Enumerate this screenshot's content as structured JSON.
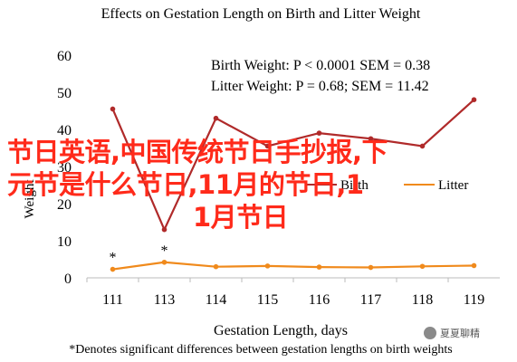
{
  "chart_data": {
    "type": "line",
    "title": "Effects on Gestation Length on Birth and Litter Weight",
    "xlabel": "Gestation Length, days",
    "ylabel": "Weight",
    "categories": [
      "111",
      "113",
      "114",
      "115",
      "116",
      "117",
      "118",
      "119"
    ],
    "ylim": [
      0,
      60
    ],
    "yticks": [
      "0",
      "10",
      "20",
      "30",
      "40",
      "50",
      "60"
    ],
    "grid": false,
    "series": [
      {
        "name": "Birth",
        "color": "#b02a2a",
        "values": [
          45.5,
          13,
          43,
          35.5,
          39,
          37.5,
          35.5,
          48
        ]
      },
      {
        "name": "Litter",
        "color": "#f08a1c",
        "values": [
          2.3,
          4.2,
          3.0,
          3.2,
          2.9,
          2.8,
          3.1,
          3.3
        ]
      }
    ],
    "stats": [
      "Birth Weight: P < 0.0001 SEM = 0.38",
      "Litter Weight: P = 0.68; SEM = 11.42"
    ],
    "asterisks": [
      {
        "label": "*",
        "category": "111",
        "value": 2.3
      },
      {
        "label": "*",
        "category": "113",
        "value": 4.2
      }
    ],
    "footnote": "*Denotes significant differences between gestation lengths on birth weights"
  },
  "overlay": {
    "line1": "节日英语,中国传统节日手抄报,下",
    "line2": "元节是什么节日,11月的节日,1",
    "line3": "1月节日"
  },
  "watermark": "夏夏聊精"
}
